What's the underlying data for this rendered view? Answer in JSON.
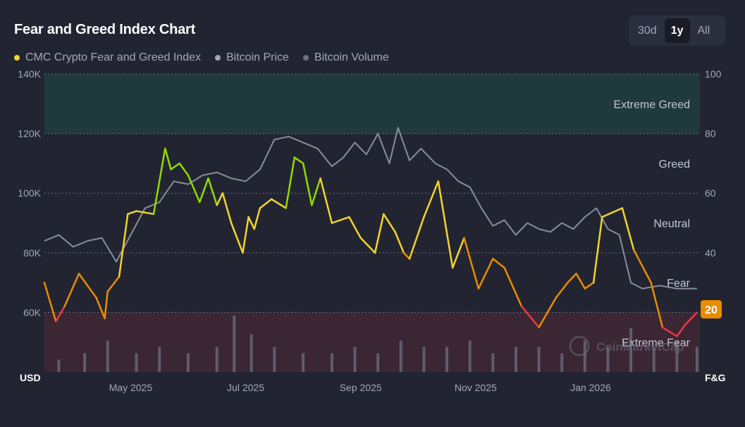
{
  "header": {
    "title": "Fear and Greed Index Chart"
  },
  "range_buttons": [
    {
      "label": "30d",
      "active": false
    },
    {
      "label": "1y",
      "active": true
    },
    {
      "label": "All",
      "active": false
    }
  ],
  "legend": [
    {
      "label": "CMC Crypto Fear and Greed Index",
      "color": "#f3d42f"
    },
    {
      "label": "Bitcoin Price",
      "color": "#a1a7bb"
    },
    {
      "label": "Bitcoin Volume",
      "color": "#6b7080"
    }
  ],
  "watermark": "CoinMarketCap",
  "chart_data": {
    "type": "line",
    "title": "Fear and Greed Index Chart",
    "left_axis": {
      "label": "USD",
      "ticks": [
        "60K",
        "80K",
        "100K",
        "120K",
        "140K"
      ],
      "tick_values": [
        60000,
        80000,
        100000,
        120000,
        140000
      ],
      "range": [
        40000,
        140000
      ]
    },
    "right_axis": {
      "label": "F&G",
      "ticks": [
        "20",
        "40",
        "60",
        "80",
        "100"
      ],
      "tick_values": [
        20,
        40,
        60,
        80,
        100
      ],
      "range": [
        0,
        100
      ]
    },
    "x_ticks": [
      "May 2025",
      "Jul 2025",
      "Sep 2025",
      "Nov 2025",
      "Jan 2026"
    ],
    "x_tick_positions": [
      1.5,
      3.5,
      5.5,
      7.5,
      9.5
    ],
    "x_range": [
      0,
      11.4
    ],
    "zones": [
      {
        "label": "Extreme Greed",
        "from": 80,
        "to": 100,
        "color": "#16c784"
      },
      {
        "label": "Greed",
        "from": 60,
        "to": 80,
        "color": ""
      },
      {
        "label": "Neutral",
        "from": 40,
        "to": 60,
        "color": ""
      },
      {
        "label": "Fear",
        "from": 20,
        "to": 40,
        "color": ""
      },
      {
        "label": "Extreme Fear",
        "from": 0,
        "to": 20,
        "color": "#ea3943"
      }
    ],
    "current_value": "20",
    "series": [
      {
        "name": "CMC Crypto Fear and Greed Index",
        "axis": "right",
        "x": [
          0,
          0.2,
          0.35,
          0.6,
          0.9,
          1.05,
          1.1,
          1.3,
          1.45,
          1.6,
          1.9,
          2.1,
          2.2,
          2.35,
          2.5,
          2.7,
          2.85,
          3.0,
          3.1,
          3.25,
          3.45,
          3.55,
          3.65,
          3.75,
          3.95,
          4.2,
          4.35,
          4.5,
          4.65,
          4.8,
          5.0,
          5.3,
          5.5,
          5.75,
          5.9,
          6.1,
          6.25,
          6.35,
          6.6,
          6.85,
          7.1,
          7.3,
          7.55,
          7.8,
          8.0,
          8.3,
          8.6,
          8.9,
          9.1,
          9.25,
          9.4,
          9.55,
          9.7,
          10.05,
          10.25,
          10.55,
          10.75,
          11.0,
          11.15,
          11.35
        ],
        "values": [
          30,
          17,
          22,
          33,
          25,
          18,
          27,
          32,
          53,
          54,
          53,
          75,
          68,
          70,
          66,
          57,
          65,
          56,
          60,
          50,
          40,
          52,
          48,
          55,
          58,
          55,
          72,
          70,
          56,
          65,
          50,
          52,
          45,
          40,
          53,
          47,
          40,
          38,
          52,
          64,
          35,
          45,
          28,
          38,
          35,
          22,
          15,
          25,
          30,
          33,
          28,
          30,
          52,
          55,
          41,
          30,
          15,
          12,
          16,
          20
        ],
        "color": "#f3d42f"
      },
      {
        "name": "Bitcoin Price",
        "axis": "left",
        "x": [
          0,
          0.25,
          0.5,
          0.75,
          1.0,
          1.25,
          1.5,
          1.75,
          2.0,
          2.25,
          2.5,
          2.75,
          3.0,
          3.25,
          3.5,
          3.75,
          4.0,
          4.25,
          4.5,
          4.75,
          5.0,
          5.2,
          5.4,
          5.6,
          5.8,
          6.0,
          6.15,
          6.35,
          6.55,
          6.8,
          7.0,
          7.2,
          7.4,
          7.6,
          7.8,
          8.0,
          8.2,
          8.4,
          8.6,
          8.8,
          9.0,
          9.2,
          9.4,
          9.6,
          9.8,
          10.0,
          10.2,
          10.4,
          10.7,
          11.0,
          11.35
        ],
        "values": [
          84000,
          86000,
          82000,
          84000,
          85000,
          77000,
          86000,
          95000,
          97000,
          104000,
          103000,
          106000,
          107000,
          105000,
          104000,
          108000,
          118000,
          119000,
          117000,
          115000,
          109000,
          112000,
          117000,
          113000,
          120000,
          110000,
          122000,
          111000,
          115000,
          110000,
          108000,
          104000,
          102000,
          95000,
          89000,
          91000,
          86000,
          90000,
          88000,
          87000,
          90000,
          88000,
          92000,
          95000,
          88000,
          86000,
          70000,
          68000,
          69000,
          68000,
          68000
        ],
        "color": "#a1a7bb"
      },
      {
        "name": "Bitcoin Volume",
        "axis": "volume",
        "x": [
          0.25,
          0.7,
          1.1,
          1.6,
          2.0,
          2.5,
          3.0,
          3.3,
          3.6,
          4.0,
          4.5,
          5.0,
          5.4,
          5.8,
          6.2,
          6.6,
          7.0,
          7.4,
          7.8,
          8.2,
          8.6,
          9.0,
          9.4,
          9.8,
          10.2,
          10.6,
          11.0,
          11.35
        ],
        "values": [
          2,
          3,
          5,
          3,
          4,
          3,
          4,
          9,
          6,
          4,
          3,
          3,
          4,
          3,
          5,
          4,
          4,
          5,
          3,
          4,
          4,
          3,
          5,
          4,
          7,
          4,
          5,
          4
        ],
        "color": "#6b7080"
      }
    ]
  }
}
